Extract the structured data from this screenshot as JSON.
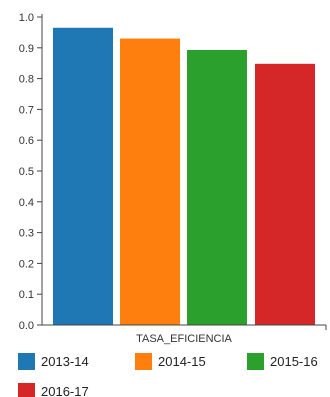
{
  "chart_data": {
    "type": "bar",
    "categories": [
      "TASA_EFICIENCIA"
    ],
    "series": [
      {
        "name": "2013-14",
        "values": [
          0.965
        ],
        "color": "#1f77b4"
      },
      {
        "name": "2014-15",
        "values": [
          0.93
        ],
        "color": "#ff7f0e"
      },
      {
        "name": "2015-16",
        "values": [
          0.893
        ],
        "color": "#2ca02c"
      },
      {
        "name": "2016-17",
        "values": [
          0.848
        ],
        "color": "#d62728"
      }
    ],
    "xlabel": "TASA_EFICIENCIA",
    "ylabel": "",
    "ylim": [
      0,
      1.0
    ],
    "yticks": [
      "0.0",
      "0.1",
      "0.2",
      "0.3",
      "0.4",
      "0.5",
      "0.6",
      "0.7",
      "0.8",
      "0.9",
      "1.0"
    ],
    "grid": false,
    "legend": "bottom"
  }
}
